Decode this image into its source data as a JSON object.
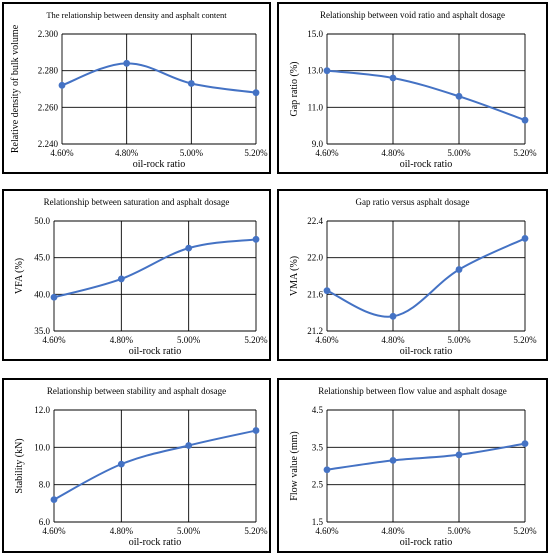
{
  "chart_data": [
    {
      "type": "line",
      "title": "The relationship between density and asphalt content",
      "xlabel": "oil-rock ratio",
      "ylabel": "Relative density of bulk volume",
      "categories": [
        "4.60%",
        "4.80%",
        "5.00%",
        "5.20%"
      ],
      "values": [
        2.272,
        2.284,
        2.273,
        2.268
      ],
      "ylim": [
        2.24,
        2.3
      ],
      "yticks": [
        "2.240",
        "2.260",
        "2.280",
        "2.300"
      ],
      "grid": true,
      "line_color": "#4472C4"
    },
    {
      "type": "line",
      "title": "Relationship between void ratio and asphalt dosage",
      "xlabel": "oil-rock ratio",
      "ylabel": "Gap ratio (%)",
      "categories": [
        "4.60%",
        "4.80%",
        "5.00%",
        "5.20%"
      ],
      "values": [
        13.0,
        12.6,
        11.6,
        10.3
      ],
      "ylim": [
        9.0,
        15.0
      ],
      "yticks": [
        "9.0",
        "11.0",
        "13.0",
        "15.0"
      ],
      "grid": true,
      "line_color": "#4472C4"
    },
    {
      "type": "line",
      "title": "Relationship between saturation and asphalt dosage",
      "xlabel": "oil-rock ratio",
      "ylabel": "VFA (%)",
      "categories": [
        "4.60%",
        "4.80%",
        "5.00%",
        "5.20%"
      ],
      "values": [
        39.6,
        42.1,
        46.3,
        47.5
      ],
      "ylim": [
        35.0,
        50.0
      ],
      "yticks": [
        "35.0",
        "40.0",
        "45.0",
        "50.0"
      ],
      "grid": true,
      "line_color": "#4472C4"
    },
    {
      "type": "line",
      "title": "Gap ratio versus asphalt dosage",
      "xlabel": "oil-rock ratio",
      "ylabel": "VMA (%)",
      "categories": [
        "4.60%",
        "4.80%",
        "5.00%",
        "5.20%"
      ],
      "values": [
        21.64,
        21.36,
        21.87,
        22.21
      ],
      "ylim": [
        21.2,
        22.4
      ],
      "yticks": [
        "21.2",
        "21.6",
        "22.0",
        "22.4"
      ],
      "grid": true,
      "line_color": "#4472C4"
    },
    {
      "type": "line",
      "title": "Relationship between stability and asphalt dosage",
      "xlabel": "oil-rock ratio",
      "ylabel": "Stability (kN)",
      "categories": [
        "4.60%",
        "4.80%",
        "5.00%",
        "5.20%"
      ],
      "values": [
        7.2,
        9.1,
        10.1,
        10.9
      ],
      "ylim": [
        6.0,
        12.0
      ],
      "yticks": [
        "6.0",
        "8.0",
        "10.0",
        "12.0"
      ],
      "grid": true,
      "line_color": "#4472C4"
    },
    {
      "type": "line",
      "title": "Relationship between flow value and asphalt dosage",
      "xlabel": "oil-rock ratio",
      "ylabel": "Flow value (mm)",
      "categories": [
        "4.60%",
        "4.80%",
        "5.00%",
        "5.20%"
      ],
      "values": [
        2.9,
        3.15,
        3.3,
        3.6
      ],
      "ylim": [
        1.5,
        4.5
      ],
      "yticks": [
        "1.5",
        "2.5",
        "3.5",
        "4.5"
      ],
      "grid": true,
      "line_color": "#4472C4"
    }
  ]
}
